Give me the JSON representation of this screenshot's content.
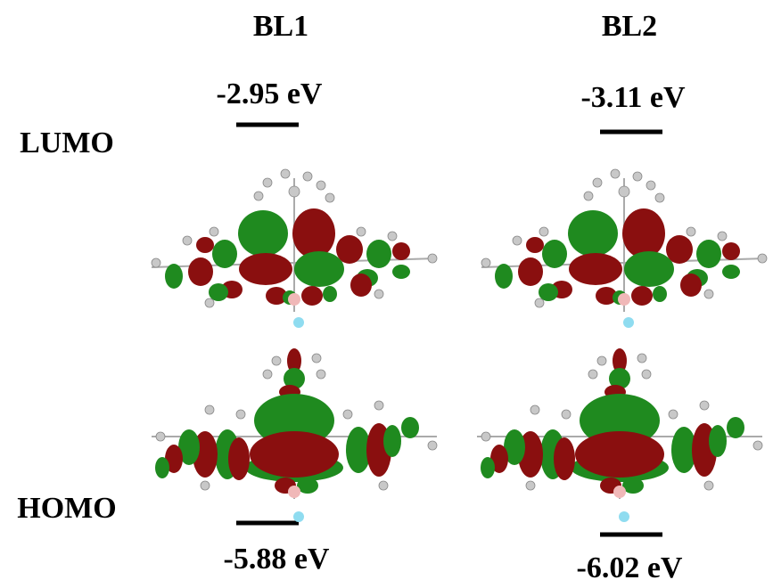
{
  "columns": [
    {
      "label": "BL1",
      "lumo": "-2.95 eV",
      "homo": "-5.88 eV"
    },
    {
      "label": "BL2",
      "lumo": "-3.11 eV",
      "homo": "-6.02 eV"
    }
  ],
  "rows": {
    "lumo": "LUMO",
    "homo": "HOMO"
  }
}
